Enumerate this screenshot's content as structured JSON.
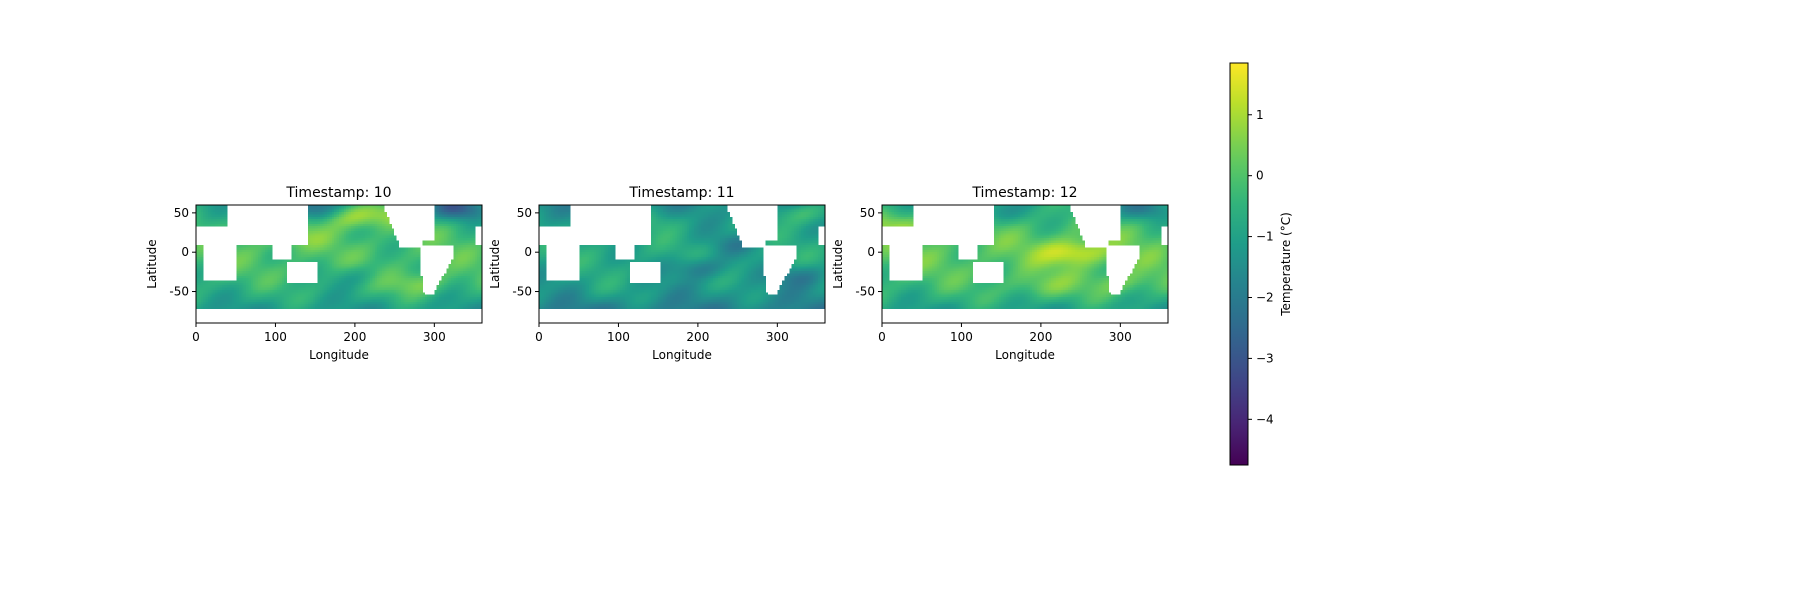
{
  "chart_data": {
    "type": "heatmap",
    "panels": [
      {
        "title": "Timestamp: 10",
        "xlabel": "Longitude",
        "ylabel": "Latitude",
        "xlim": [
          0,
          360
        ],
        "ylim": [
          -90,
          60
        ],
        "xticks": [
          0,
          100,
          200,
          300
        ],
        "yticks": [
          50,
          0,
          -50
        ],
        "anomaly": {
          "base": -0.4,
          "hot_spots": [
            [
              200,
              45,
              1.4
            ],
            [
              280,
              -40,
              1.0
            ],
            [
              120,
              20,
              0.8
            ],
            [
              250,
              50,
              0.8
            ]
          ],
          "cold_spots": [
            [
              330,
              55,
              -2.0
            ],
            [
              140,
              55,
              -1.6
            ],
            [
              200,
              -30,
              -0.7
            ]
          ]
        }
      },
      {
        "title": "Timestamp: 11",
        "xlabel": "Longitude",
        "ylabel": "Latitude",
        "xlim": [
          0,
          360
        ],
        "ylim": [
          -90,
          60
        ],
        "xticks": [
          0,
          100,
          200,
          300
        ],
        "yticks": [
          50,
          0,
          -50
        ],
        "anomaly": {
          "base": -1.1,
          "hot_spots": [
            [
              330,
              50,
              1.2
            ],
            [
              150,
              40,
              0.5
            ],
            [
              80,
              -50,
              0.3
            ]
          ],
          "cold_spots": [
            [
              200,
              -20,
              -1.2
            ],
            [
              330,
              -30,
              -1.0
            ],
            [
              250,
              10,
              -0.8
            ]
          ]
        }
      },
      {
        "title": "Timestamp: 12",
        "xlabel": "Longitude",
        "ylabel": "Latitude",
        "xlim": [
          0,
          360
        ],
        "ylim": [
          -90,
          60
        ],
        "xticks": [
          0,
          100,
          200,
          300
        ],
        "yticks": [
          50,
          0,
          -50
        ],
        "anomaly": {
          "base": -0.2,
          "hot_spots": [
            [
              240,
              0,
              1.6
            ],
            [
              20,
              35,
              0.9
            ],
            [
              300,
              -40,
              0.8
            ],
            [
              200,
              -45,
              0.7
            ]
          ],
          "cold_spots": [
            [
              330,
              55,
              -1.3
            ],
            [
              140,
              50,
              -0.8
            ]
          ]
        }
      }
    ],
    "colorbar": {
      "label": "Temperature (°C)",
      "colormap": "viridis",
      "range": [
        -4.75,
        1.85
      ],
      "ticks": [
        1,
        0,
        -1,
        -2,
        -3,
        -4
      ]
    }
  }
}
